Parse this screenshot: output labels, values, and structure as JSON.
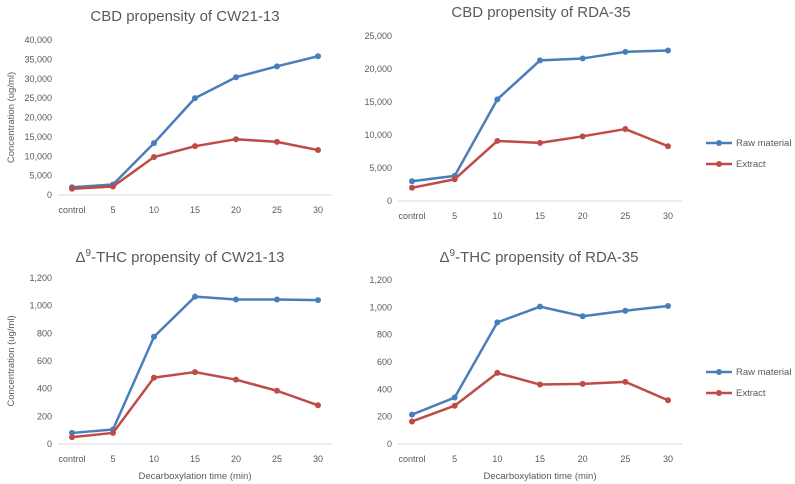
{
  "chart_data": [
    {
      "type": "line",
      "title": "CBD propensity of CW21-13",
      "categories": [
        "control",
        "5",
        "10",
        "15",
        "20",
        "25",
        "30"
      ],
      "ylabel": "Concentration (ug/ml)",
      "xlabel": "",
      "ylim": [
        0,
        40000
      ],
      "yticks": [
        "0",
        "5,000",
        "10,000",
        "15,000",
        "20,000",
        "25,000",
        "30,000",
        "35,000",
        "40,000"
      ],
      "series": [
        {
          "name": "Raw material",
          "color": "#4a7ebb",
          "values": [
            2000,
            2700,
            13400,
            25000,
            30400,
            33200,
            35800
          ]
        },
        {
          "name": "Extract",
          "color": "#be4b48",
          "values": [
            1600,
            2200,
            9800,
            12600,
            14400,
            13700,
            11600
          ]
        }
      ]
    },
    {
      "type": "line",
      "title": "CBD propensity of RDA-35",
      "categories": [
        "control",
        "5",
        "10",
        "15",
        "20",
        "25",
        "30"
      ],
      "ylabel": "",
      "xlabel": "",
      "ylim": [
        0,
        25000
      ],
      "yticks": [
        "0",
        "5,000",
        "10,000",
        "15,000",
        "20,000",
        "25,000"
      ],
      "series": [
        {
          "name": "Raw material",
          "color": "#4a7ebb",
          "values": [
            3000,
            3800,
            15400,
            21300,
            21600,
            22600,
            22800
          ]
        },
        {
          "name": "Extract",
          "color": "#be4b48",
          "values": [
            2000,
            3300,
            9100,
            8800,
            9800,
            10900,
            8300
          ]
        }
      ]
    },
    {
      "type": "line",
      "title_pre": "Δ",
      "title_sup": "9",
      "title_post": "-THC propensity of CW21-13",
      "categories": [
        "control",
        "5",
        "10",
        "15",
        "20",
        "25",
        "30"
      ],
      "ylabel": "Concentration (ug/ml)",
      "xlabel": "Decarboxylation time (min)",
      "ylim": [
        0,
        1200
      ],
      "yticks": [
        "0",
        "200",
        "400",
        "600",
        "800",
        "1,000",
        "1,200"
      ],
      "series": [
        {
          "name": "Raw material",
          "color": "#4a7ebb",
          "values": [
            80,
            105,
            775,
            1065,
            1045,
            1045,
            1040
          ]
        },
        {
          "name": "Extract",
          "color": "#be4b48",
          "values": [
            50,
            80,
            480,
            520,
            465,
            385,
            280
          ]
        }
      ]
    },
    {
      "type": "line",
      "title_pre": "Δ",
      "title_sup": "9",
      "title_post": "-THC propensity of RDA-35",
      "categories": [
        "control",
        "5",
        "10",
        "15",
        "20",
        "25",
        "30"
      ],
      "ylabel": "",
      "xlabel": "Decarboxylation time (min)",
      "ylim": [
        0,
        1200
      ],
      "yticks": [
        "0",
        "200",
        "400",
        "600",
        "800",
        "1,000",
        "1,200"
      ],
      "series": [
        {
          "name": "Raw material",
          "color": "#4a7ebb",
          "values": [
            215,
            340,
            890,
            1005,
            935,
            975,
            1010
          ]
        },
        {
          "name": "Extract",
          "color": "#be4b48",
          "values": [
            165,
            280,
            520,
            435,
            440,
            455,
            320
          ]
        }
      ]
    }
  ],
  "legends": [
    {
      "entries": [
        {
          "label": "Raw material",
          "color": "#4a7ebb"
        },
        {
          "label": "Extract",
          "color": "#be4b48"
        }
      ]
    },
    {
      "entries": [
        {
          "label": "Raw material",
          "color": "#4a7ebb"
        },
        {
          "label": "Extract",
          "color": "#be4b48"
        }
      ]
    }
  ]
}
